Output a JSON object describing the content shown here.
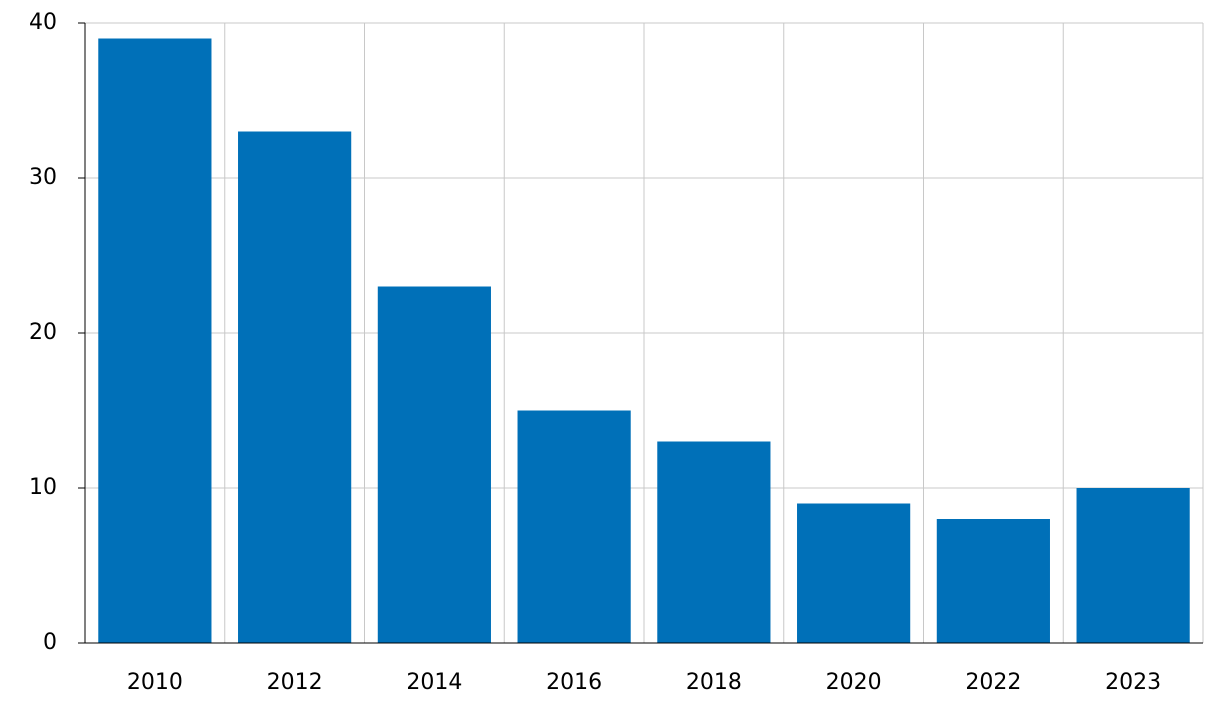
{
  "chart_data": {
    "type": "bar",
    "categories": [
      "2010",
      "2012",
      "2014",
      "2016",
      "2018",
      "2020",
      "2022",
      "2023"
    ],
    "values": [
      39,
      33,
      23,
      15,
      13,
      9,
      8,
      10
    ],
    "color": "#0070b8",
    "ylim": [
      0,
      40
    ],
    "yticks": [
      0,
      10,
      20,
      30,
      40
    ],
    "grid": true
  }
}
